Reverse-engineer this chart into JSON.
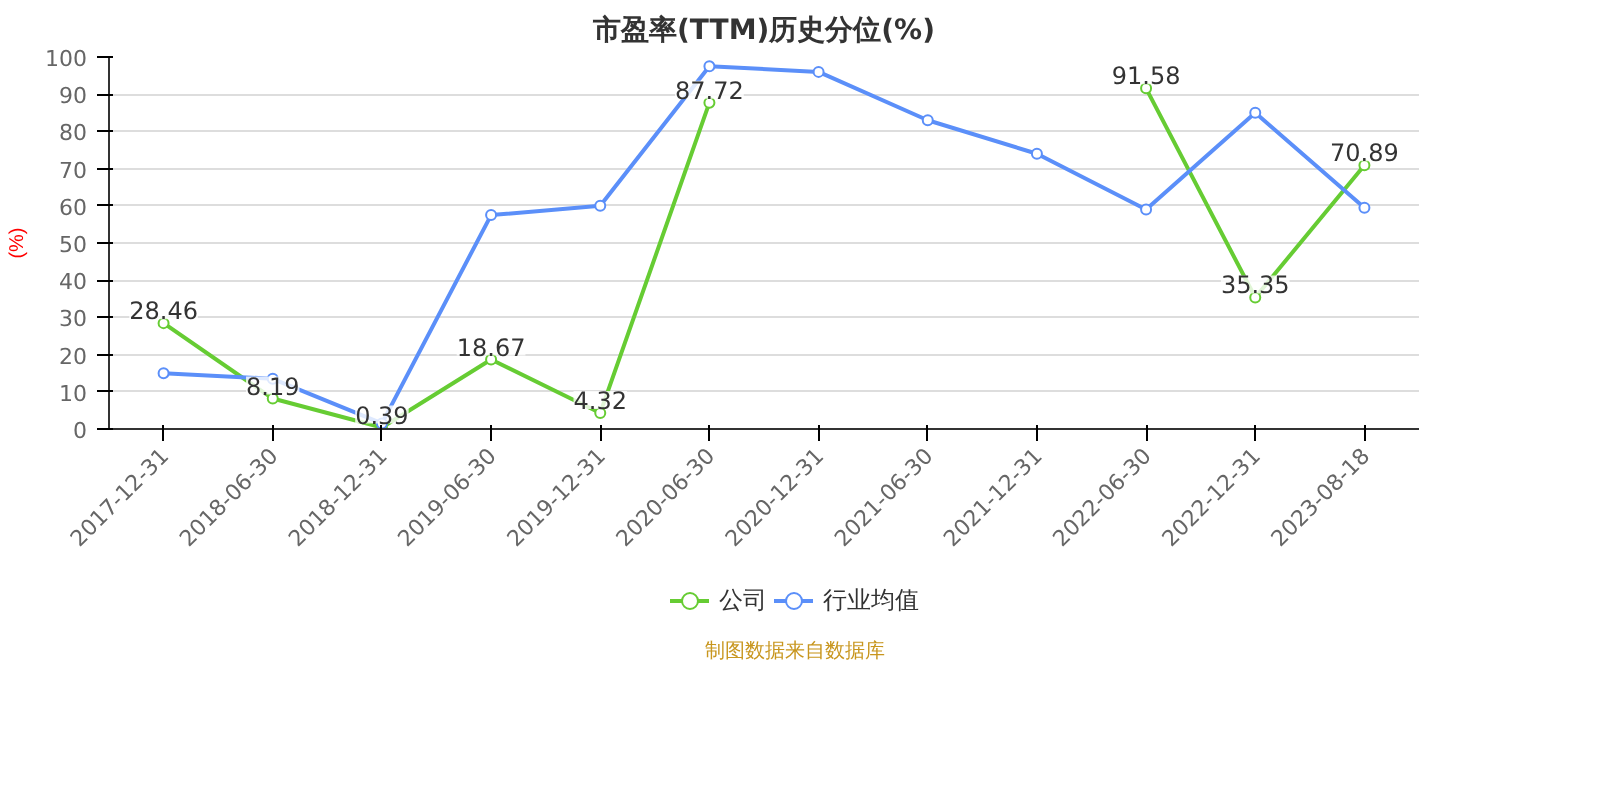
{
  "chart_data": {
    "type": "line",
    "title": "市盈率(TTM)历史分位(%)",
    "ylabel": "(%)",
    "categories": [
      "2017-12-31",
      "2018-06-30",
      "2018-12-31",
      "2019-06-30",
      "2019-12-31",
      "2020-06-30",
      "2020-12-31",
      "2021-06-30",
      "2021-12-31",
      "2022-06-30",
      "2022-12-31",
      "2023-08-18"
    ],
    "series": [
      {
        "name": "公司",
        "color": "#66cc33",
        "values": [
          28.46,
          8.19,
          0.39,
          18.67,
          4.32,
          87.72,
          null,
          null,
          null,
          91.58,
          35.35,
          70.89
        ],
        "value_labels": [
          "28.46",
          "8.19",
          "0.39",
          "18.67",
          "4.32",
          "87.72",
          null,
          null,
          null,
          "91.58",
          "35.35",
          "70.89"
        ]
      },
      {
        "name": "行业均值",
        "color": "#5b8ff9",
        "values": [
          15,
          13.5,
          1.5,
          57.5,
          60,
          97.5,
          96,
          83,
          74,
          59,
          85,
          59.5
        ]
      }
    ],
    "ylim": [
      0,
      100
    ],
    "yticks": [
      0,
      10,
      20,
      30,
      40,
      50,
      60,
      70,
      80,
      90,
      100
    ],
    "grid": "y",
    "legend": "bottom",
    "marker": "circle",
    "line_style": "solid",
    "annotations": [
      "制图数据来自数据库"
    ]
  }
}
